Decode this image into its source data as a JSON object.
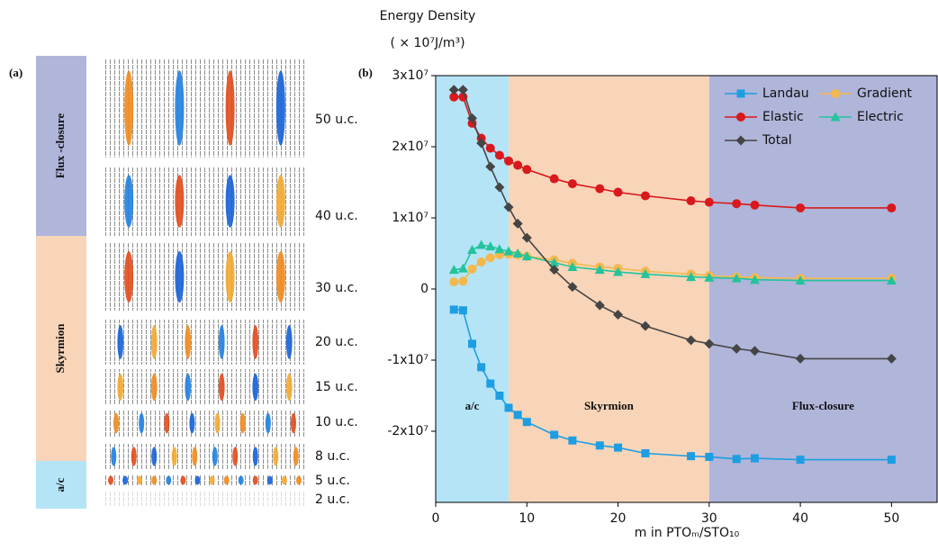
{
  "panel_a": {
    "label": "(a)",
    "phases": [
      {
        "name": "Flux -closure",
        "color": "#b0b5da"
      },
      {
        "name": "Skyrmion",
        "color": "#f8d5b9"
      },
      {
        "name": "a/c",
        "color": "#b5e4f7"
      }
    ],
    "thicknesses": [
      "50 u.c.",
      "40 u.c.",
      "30 u.c.",
      "20 u.c.",
      "15 u.c.",
      "10 u.c.",
      "8 u.c.",
      "5 u.c.",
      "2 u.c."
    ]
  },
  "chart_data": {
    "type": "line",
    "panel_label": "(b)",
    "title": "Energy Density",
    "subtitle": "( × 10⁷J/m³)",
    "x_label": "m in PTOₘ/STO₁₀",
    "x": [
      2,
      3,
      4,
      5,
      6,
      7,
      8,
      9,
      10,
      13,
      15,
      18,
      20,
      23,
      28,
      30,
      33,
      35,
      40,
      50
    ],
    "series": [
      {
        "name": "Landau",
        "color": "#1e9ee2",
        "marker": "square",
        "values": [
          -2900000.0,
          -3000000.0,
          -7700000.0,
          -11000000.0,
          -13300000.0,
          -15000000.0,
          -16700000.0,
          -17700000.0,
          -18700000.0,
          -20500000.0,
          -21300000.0,
          -22000000.0,
          -22300000.0,
          -23100000.0,
          -23500000.0,
          -23600000.0,
          -23900000.0,
          -23800000.0,
          -24000000.0,
          -24000000.0
        ]
      },
      {
        "name": "Gradient",
        "color": "#f4b84c",
        "marker": "circle",
        "values": [
          1000000.0,
          1100000.0,
          2800000.0,
          3800000.0,
          4400000.0,
          4800000.0,
          4900000.0,
          4800000.0,
          4600000.0,
          4100000.0,
          3600000.0,
          3100000.0,
          2900000.0,
          2500000.0,
          2100000.0,
          1900000.0,
          1700000.0,
          1600000.0,
          1500000.0,
          1500000.0
        ]
      },
      {
        "name": "Elastic",
        "color": "#d9191c",
        "marker": "circle",
        "values": [
          27000000.0,
          27000000.0,
          23300000.0,
          21200000.0,
          19800000.0,
          18800000.0,
          18000000.0,
          17400000.0,
          16800000.0,
          15500000.0,
          14800000.0,
          14100000.0,
          13600000.0,
          13100000.0,
          12400000.0,
          12200000.0,
          12000000.0,
          11800000.0,
          11400000.0,
          11400000.0
        ]
      },
      {
        "name": "Electric",
        "color": "#23c39c",
        "marker": "triangle",
        "values": [
          2700000.0,
          2900000.0,
          5500000.0,
          6200000.0,
          6000000.0,
          5600000.0,
          5300000.0,
          5000000.0,
          4600000.0,
          3700000.0,
          3100000.0,
          2700000.0,
          2400000.0,
          2100000.0,
          1700000.0,
          1600000.0,
          1500000.0,
          1300000.0,
          1200000.0,
          1200000.0
        ]
      },
      {
        "name": "Total",
        "color": "#454545",
        "marker": "diamond",
        "values": [
          28000000.0,
          28000000.0,
          24000000.0,
          20500000.0,
          17200000.0,
          14300000.0,
          11500000.0,
          9200000.0,
          7200000.0,
          2700000.0,
          300000.0,
          -2300000.0,
          -3600000.0,
          -5200000.0,
          -7200000.0,
          -7700000.0,
          -8400000.0,
          -8700000.0,
          -9800000.0,
          -9800000.0
        ]
      }
    ],
    "regions": [
      {
        "name": "a/c",
        "color": "#b5e4f7",
        "x": [
          0,
          8
        ]
      },
      {
        "name": "Skyrmion",
        "color": "#f8d5b9",
        "x": [
          8,
          30
        ]
      },
      {
        "name": "Flux-closure",
        "color": "#b0b5da",
        "x": [
          30,
          55
        ]
      }
    ],
    "xlim": [
      0,
      55
    ],
    "xticks": [
      0,
      10,
      20,
      30,
      40,
      50
    ],
    "ylim": [
      -30000000.0,
      30000000.0
    ],
    "yticks": [
      {
        "value": -20000000.0,
        "label": "-2x10⁷"
      },
      {
        "value": -10000000.0,
        "label": "-1x10⁷"
      },
      0,
      {
        "value": 10000000.0,
        "label": "1x10⁷"
      },
      {
        "value": 20000000.0,
        "label": "2x10⁷"
      },
      {
        "value": 30000000.0,
        "label": "3x10⁷"
      }
    ],
    "legend": "upper right"
  }
}
